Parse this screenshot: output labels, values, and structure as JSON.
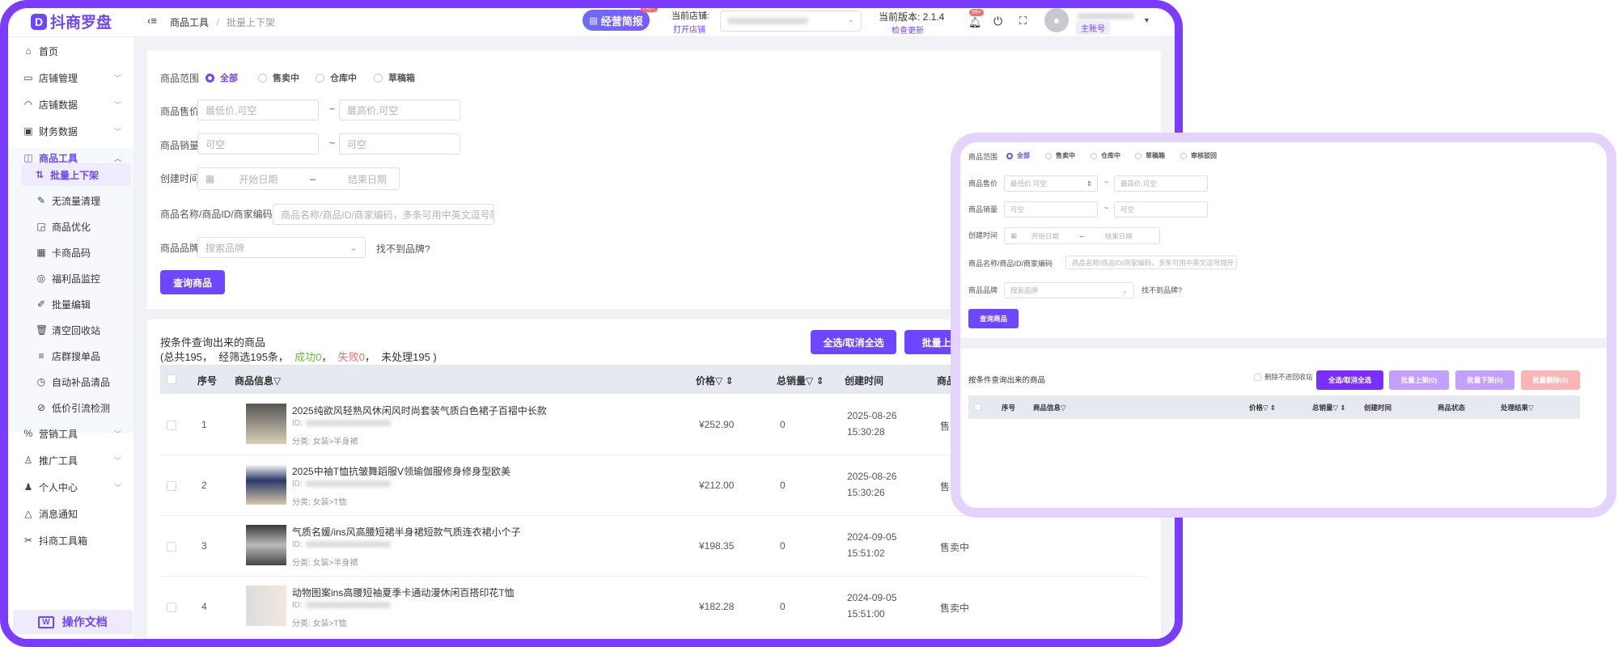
{
  "app": {
    "logo": "抖商罗盘",
    "logo_mark": "D"
  },
  "header": {
    "breadcrumb": [
      "商品工具",
      "批量上下架"
    ],
    "report_button": "经营简报",
    "hot_badge": "HOT",
    "store_label": "当前店铺:",
    "open_store": "打开店铺",
    "version_label": "当前版本: 2.1.4",
    "check_update": "检查更新",
    "notifications_badge": "99+",
    "account_tag": "主账号"
  },
  "sidebar": {
    "items": [
      {
        "label": "首页",
        "icon": "home-icon"
      },
      {
        "label": "店铺管理",
        "icon": "store-icon",
        "chevron": "down"
      },
      {
        "label": "店铺数据",
        "icon": "chart-icon",
        "chevron": "down"
      },
      {
        "label": "财务数据",
        "icon": "finance-icon",
        "chevron": "down"
      },
      {
        "label": "商品工具",
        "icon": "goods-icon",
        "chevron": "up",
        "active": true
      }
    ],
    "sub_items": [
      "批量上下架",
      "无流量清理",
      "商品优化",
      "卡商品码",
      "福利品监控",
      "批量编辑",
      "清空回收站",
      "店群搜单品",
      "自动补品清品",
      "低价引流检测"
    ],
    "bottom_items": [
      {
        "label": "营销工具",
        "icon": "marketing-icon",
        "chevron": "down"
      },
      {
        "label": "推广工具",
        "icon": "promote-icon",
        "chevron": "down"
      },
      {
        "label": "个人中心",
        "icon": "user-icon",
        "chevron": "down"
      },
      {
        "label": "消息通知",
        "icon": "bell-icon"
      },
      {
        "label": "抖商工具箱",
        "icon": "tools-icon"
      }
    ],
    "doc_button": "操作文档",
    "doc_icon": "W"
  },
  "form": {
    "scope_label": "商品范围",
    "scope_options": [
      "全部",
      "售卖中",
      "仓库中",
      "草稿箱"
    ],
    "price_label": "商品售价",
    "price_min_ph": "最低价,可空",
    "price_max_ph": "最高价,可空",
    "sales_label": "商品销量",
    "sales_ph": "可空",
    "tilde": "~",
    "date_label": "创建时间",
    "date_start_ph": "开始日期",
    "date_end_ph": "结束日期",
    "dash": "–",
    "name_label": "商品名称/商品ID/商家编码",
    "name_ph": "商品名称/商品ID/商家编码，多条可用中英文逗号隔开",
    "brand_label": "商品品牌",
    "brand_ph": "搜索品牌",
    "brand_missing": "找不到品牌?",
    "query_button": "查询商品"
  },
  "results": {
    "title": "按条件查询出来的商品",
    "summary_prefix": "(总共195，  经筛选195条，",
    "success": "成功0",
    "sep": "，",
    "fail": "失败0",
    "summary_suffix": "，  未处理195 )",
    "select_all_button": "全选/取消全选",
    "batch_on_button": "批量上架(0)",
    "columns": [
      "序号",
      "商品信息▽",
      "价格▽ ⇕",
      "总销量▽ ⇕",
      "创建时间",
      "商品状态"
    ],
    "rows": [
      {
        "index": "1",
        "title": "2025纯欲风轻熟风休闲风时尚套装气质白色裙子百褶中长款",
        "id_label": "ID:",
        "category": "分类:  女装>半身裙",
        "price": "¥252.90",
        "sales": "0",
        "date": "2025-08-26",
        "time": "15:30:28",
        "status": "售卖中"
      },
      {
        "index": "2",
        "title": "2025中袖T恤抗皱舞蹈服V领瑜伽服修身修身型欧美",
        "id_label": "ID:",
        "category": "分类:  女装>T恤",
        "price": "¥212.00",
        "sales": "0",
        "date": "2025-08-26",
        "time": "15:30:26",
        "status": "售卖中"
      },
      {
        "index": "3",
        "title": "气质名媛/ins风高腰短裙半身裙短款气质连衣裙小个子",
        "id_label": "ID:",
        "category": "分类:  女装>半身裙",
        "price": "¥198.35",
        "sales": "0",
        "date": "2024-09-05",
        "time": "15:51:02",
        "status": "售卖中"
      },
      {
        "index": "4",
        "title": "动物图案ins高腰短袖夏季卡通动漫休闲百搭印花T恤",
        "id_label": "ID:",
        "category": "分类:  女装>T恤",
        "price": "¥182.28",
        "sales": "0",
        "date": "2024-09-05",
        "time": "15:51:00",
        "status": "售卖中"
      }
    ]
  },
  "overlay": {
    "scope_options": [
      "全部",
      "售卖中",
      "仓库中",
      "草稿箱",
      "审核驳回"
    ],
    "delete_no_recycle": "删除不进回收站",
    "buttons": [
      "全选/取消全选",
      "批量上架(0)",
      "批量下架(0)",
      "批量删除(0)"
    ],
    "columns": [
      "序号",
      "商品信息▽",
      "价格▽ ⇕",
      "总销量▽ ⇕",
      "创建时间",
      "商品状态",
      "处理结果▽"
    ]
  },
  "colors": {
    "accent": "#6c47ff",
    "frame": "#7a3cff",
    "overlay_border": "#e4d4fd",
    "success": "#67c23a",
    "fail": "#f56c6c"
  }
}
